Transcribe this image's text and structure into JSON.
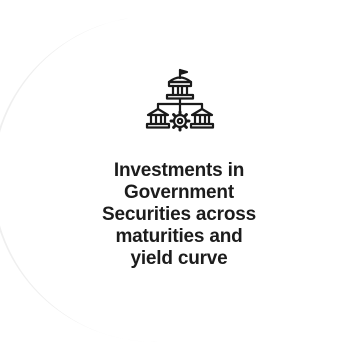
{
  "icon": "government-building-network-icon",
  "caption": {
    "lines": [
      "Investments in",
      "Government",
      "Securities across",
      "maturities and",
      "yield curve"
    ]
  },
  "colors": {
    "accent": "#F28021",
    "ring_grey": "#EFEFEF",
    "text": "#1C1C1C",
    "icon": "#1A1A1A"
  }
}
